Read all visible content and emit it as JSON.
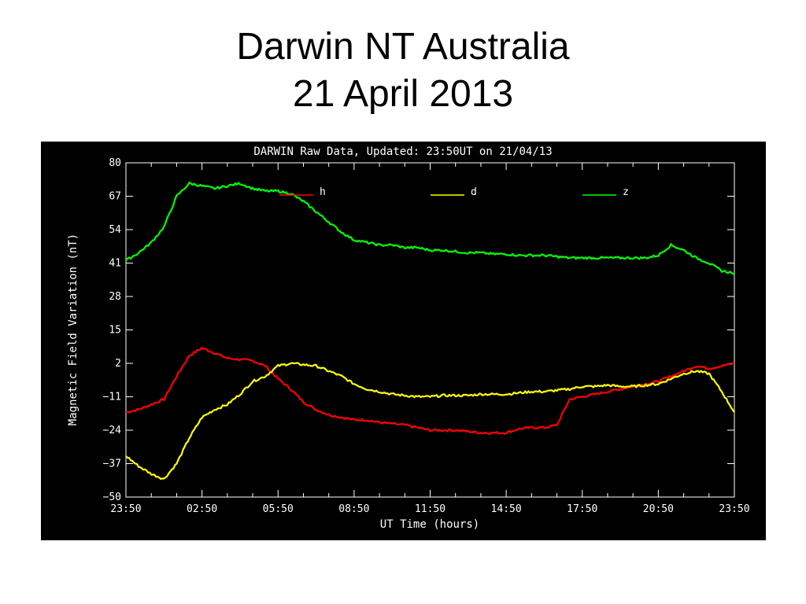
{
  "slide": {
    "title_line1": "Darwin NT Australia",
    "title_line2": "21 April 2013"
  },
  "chart_data": {
    "type": "line",
    "title": "DARWIN Raw Data, Updated: 23:50UT on 21/04/13",
    "xlabel": "UT Time (hours)",
    "ylabel": "Magnetic Field Variation (nT)",
    "xlim": [
      0,
      24
    ],
    "ylim": [
      -50,
      80
    ],
    "x_ticks": [
      "23:50",
      "02:50",
      "05:50",
      "08:50",
      "11:50",
      "14:50",
      "17:50",
      "20:50",
      "23:50"
    ],
    "y_ticks": [
      80,
      67,
      54,
      41,
      28,
      15,
      2,
      -11,
      -24,
      -37,
      -50
    ],
    "legend_placement": "top",
    "colors": {
      "h": "#ff0000",
      "d": "#ffff00",
      "z": "#00ff00"
    },
    "series": [
      {
        "name": "h",
        "color": "#ff0000",
        "x": [
          0,
          0.5,
          1,
          1.5,
          2,
          2.5,
          3,
          3.5,
          4,
          4.5,
          5,
          5.5,
          6,
          6.5,
          7,
          7.5,
          8,
          8.5,
          9,
          9.5,
          10,
          10.5,
          11,
          11.5,
          12,
          12.5,
          13,
          13.5,
          14,
          14.5,
          15,
          15.5,
          16,
          16.5,
          17,
          17.5,
          18,
          18.5,
          19,
          19.5,
          20,
          20.5,
          21,
          21.5,
          22,
          22.5,
          23,
          23.5,
          24
        ],
        "values": [
          -17,
          -16,
          -14,
          -12,
          -3,
          5,
          8,
          6,
          4,
          3.5,
          3,
          1,
          -4,
          -8,
          -13,
          -16,
          -18,
          -19,
          -20,
          -20,
          -21,
          -21.5,
          -22,
          -23,
          -24,
          -24,
          -24,
          -24.5,
          -25,
          -25,
          -25,
          -23.5,
          -23,
          -23,
          -22,
          -12,
          -11,
          -10,
          -9,
          -8,
          -7,
          -6,
          -5,
          -3,
          -1,
          1,
          0,
          1,
          2
        ]
      },
      {
        "name": "d",
        "color": "#ffff00",
        "x": [
          0,
          0.5,
          1,
          1.5,
          2,
          2.5,
          3,
          3.5,
          4,
          4.5,
          5,
          5.5,
          6,
          6.5,
          7,
          7.5,
          8,
          8.5,
          9,
          9.5,
          10,
          10.5,
          11,
          11.5,
          12,
          12.5,
          13,
          13.5,
          14,
          14.5,
          15,
          15.5,
          16,
          16.5,
          17,
          17.5,
          18,
          18.5,
          19,
          19.5,
          20,
          20.5,
          21,
          21.5,
          22,
          22.5,
          23,
          23.5,
          24
        ],
        "values": [
          -34,
          -38,
          -41,
          -43,
          -37,
          -27,
          -19,
          -16,
          -14,
          -10,
          -5,
          -3,
          1,
          2,
          1.5,
          1,
          -1,
          -3,
          -6,
          -8,
          -9,
          -10,
          -10.5,
          -11,
          -11,
          -10.5,
          -10.5,
          -10.5,
          -10,
          -10,
          -10,
          -9.5,
          -9,
          -9,
          -8.5,
          -8,
          -7,
          -7,
          -6.5,
          -7,
          -7,
          -6.5,
          -6,
          -4,
          -2,
          -1,
          -2,
          -9,
          -17
        ]
      },
      {
        "name": "z",
        "color": "#00ff00",
        "x": [
          0,
          0.5,
          1,
          1.5,
          2,
          2.5,
          3,
          3.5,
          4,
          4.5,
          5,
          5.5,
          6,
          6.5,
          7,
          7.5,
          8,
          8.5,
          9,
          9.5,
          10,
          10.5,
          11,
          11.5,
          12,
          12.5,
          13,
          13.5,
          14,
          14.5,
          15,
          15.5,
          16,
          16.5,
          17,
          17.5,
          18,
          18.5,
          19,
          19.5,
          20,
          20.5,
          21,
          21.5,
          22,
          22.5,
          23,
          23.5,
          24
        ],
        "values": [
          42,
          45,
          49,
          55,
          67,
          72,
          71,
          70,
          71,
          72,
          70,
          69,
          69,
          68,
          65,
          61,
          57,
          53,
          50,
          49,
          48,
          48,
          47,
          47,
          46,
          46,
          45.5,
          45,
          45,
          44.5,
          44.5,
          44,
          44,
          44,
          43.5,
          43,
          43,
          43,
          43,
          43,
          43,
          43,
          44,
          48,
          46,
          43,
          41,
          38,
          37
        ]
      }
    ]
  }
}
